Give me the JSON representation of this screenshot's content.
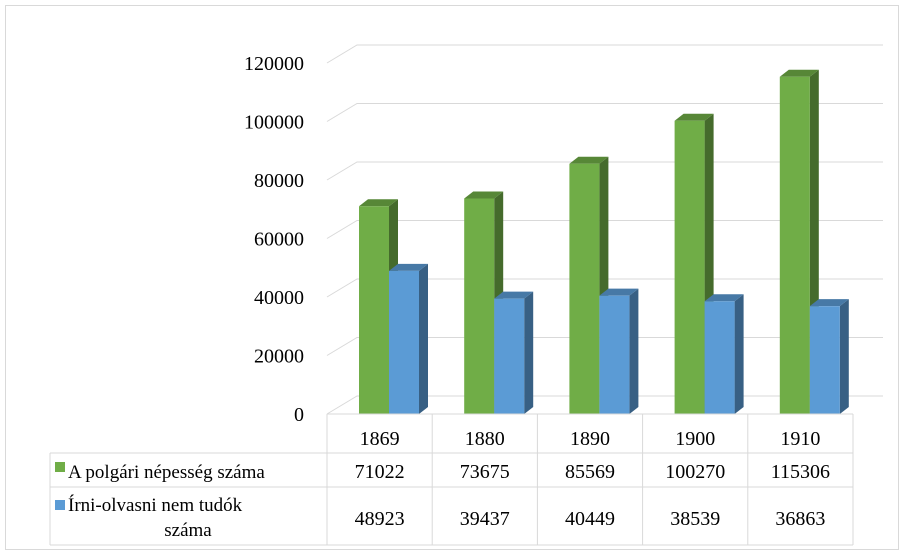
{
  "chart_data": {
    "type": "bar",
    "categories": [
      "1869",
      "1880",
      "1890",
      "1900",
      "1910"
    ],
    "series": [
      {
        "name": "A polgári népesség száma",
        "values": [
          71022,
          73675,
          85569,
          100270,
          115306
        ],
        "color": "#70ad47"
      },
      {
        "name": "Írni-olvasni nem tudók száma",
        "values": [
          48923,
          39437,
          40449,
          38539,
          36863
        ],
        "color": "#5b9bd5"
      }
    ],
    "y_ticks": [
      "0",
      "20000",
      "40000",
      "60000",
      "80000",
      "100000",
      "120000"
    ],
    "ylim": [
      0,
      120000
    ],
    "grid": true,
    "legend": "data-table",
    "title": "",
    "xlabel": "",
    "ylabel": ""
  }
}
